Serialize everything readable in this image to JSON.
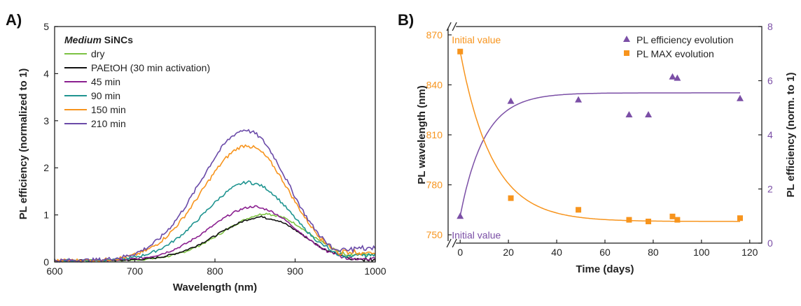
{
  "colors": {
    "axis": "#222222",
    "orange": "#f7941d",
    "purple": "#7b4fa6",
    "dry": "#7cc242",
    "paetoh": "#111111",
    "m45": "#8a1f8f",
    "m90": "#1f9490",
    "m150": "#f7941d",
    "m210": "#6a4aa8"
  },
  "chart_data": [
    {
      "panel": "A)",
      "type": "line",
      "title": "",
      "xlabel": "Wavelength (nm)",
      "ylabel": "PL efficiency (normalized to 1)",
      "xlim": [
        600,
        1000
      ],
      "ylim": [
        0,
        5
      ],
      "xticks": [
        600,
        700,
        800,
        900,
        1000
      ],
      "yticks": [
        0,
        1,
        2,
        3,
        4,
        5
      ],
      "legend_title_italic": "Medium",
      "legend_title_rest": " SiNCs",
      "series": [
        {
          "name": "dry",
          "color_key": "dry",
          "peak_x": 868,
          "peak_y": 1.0,
          "s1": 82,
          "s2": 70,
          "end_y": 0.18
        },
        {
          "name": "PAEtOH (30 min activation)",
          "color_key": "paetoh",
          "peak_x": 862,
          "peak_y": 0.93,
          "s1": 82,
          "s2": 68,
          "end_y": 0.06
        },
        {
          "name": "45 min",
          "color_key": "m45",
          "peak_x": 852,
          "peak_y": 1.15,
          "s1": 82,
          "s2": 70,
          "end_y": 0.06
        },
        {
          "name": "90 min",
          "color_key": "m90",
          "peak_x": 845,
          "peak_y": 1.67,
          "s1": 82,
          "s2": 72,
          "end_y": 0.14
        },
        {
          "name": "150 min",
          "color_key": "m150",
          "peak_x": 842,
          "peak_y": 2.45,
          "s1": 82,
          "s2": 72,
          "end_y": 0.2
        },
        {
          "name": "210 min",
          "color_key": "m210",
          "peak_x": 840,
          "peak_y": 2.78,
          "s1": 82,
          "s2": 72,
          "end_y": 0.28
        }
      ]
    },
    {
      "panel": "B)",
      "type": "scatter",
      "xlabel": "Time (days)",
      "ylabel_left": "PL wavelength (nm)",
      "ylabel_right": "PL efficiency (norm. to 1)",
      "xlim": [
        -5,
        125
      ],
      "xticks": [
        0,
        20,
        40,
        60,
        80,
        100,
        120
      ],
      "ylim_left": [
        745,
        875
      ],
      "yticks_left": [
        750,
        780,
        810,
        840,
        870
      ],
      "ylim_right": [
        0,
        8
      ],
      "yticks_right": [
        0,
        2,
        4,
        6,
        8
      ],
      "axis_break": "//",
      "annotations": [
        {
          "text": "Initial value",
          "color_key": "orange",
          "x": 0,
          "y_left": 860,
          "position": "above"
        },
        {
          "text": "Initial value",
          "color_key": "purple",
          "x": 0,
          "y_left": 757,
          "position": "below"
        }
      ],
      "series": [
        {
          "name": "PL efficiency evolution",
          "marker": "triangle",
          "color_key": "purple",
          "axis": "right",
          "x": [
            0,
            21,
            49,
            70,
            78,
            88,
            90,
            116
          ],
          "y": [
            1.0,
            5.25,
            5.3,
            4.75,
            4.75,
            6.15,
            6.1,
            5.35
          ],
          "fit_line": {
            "a": 5.55,
            "b": 4.55,
            "k": 0.1,
            "x_end": 116
          }
        },
        {
          "name": "PL MAX evolution",
          "marker": "square",
          "color_key": "orange",
          "axis": "left",
          "x": [
            0,
            21,
            49,
            70,
            78,
            88,
            90,
            116
          ],
          "y": [
            860,
            772,
            765,
            759,
            758,
            761,
            759,
            760
          ],
          "fit_line": {
            "a": 758,
            "b": 102,
            "k": 0.075,
            "x_end": 116
          }
        }
      ]
    }
  ]
}
